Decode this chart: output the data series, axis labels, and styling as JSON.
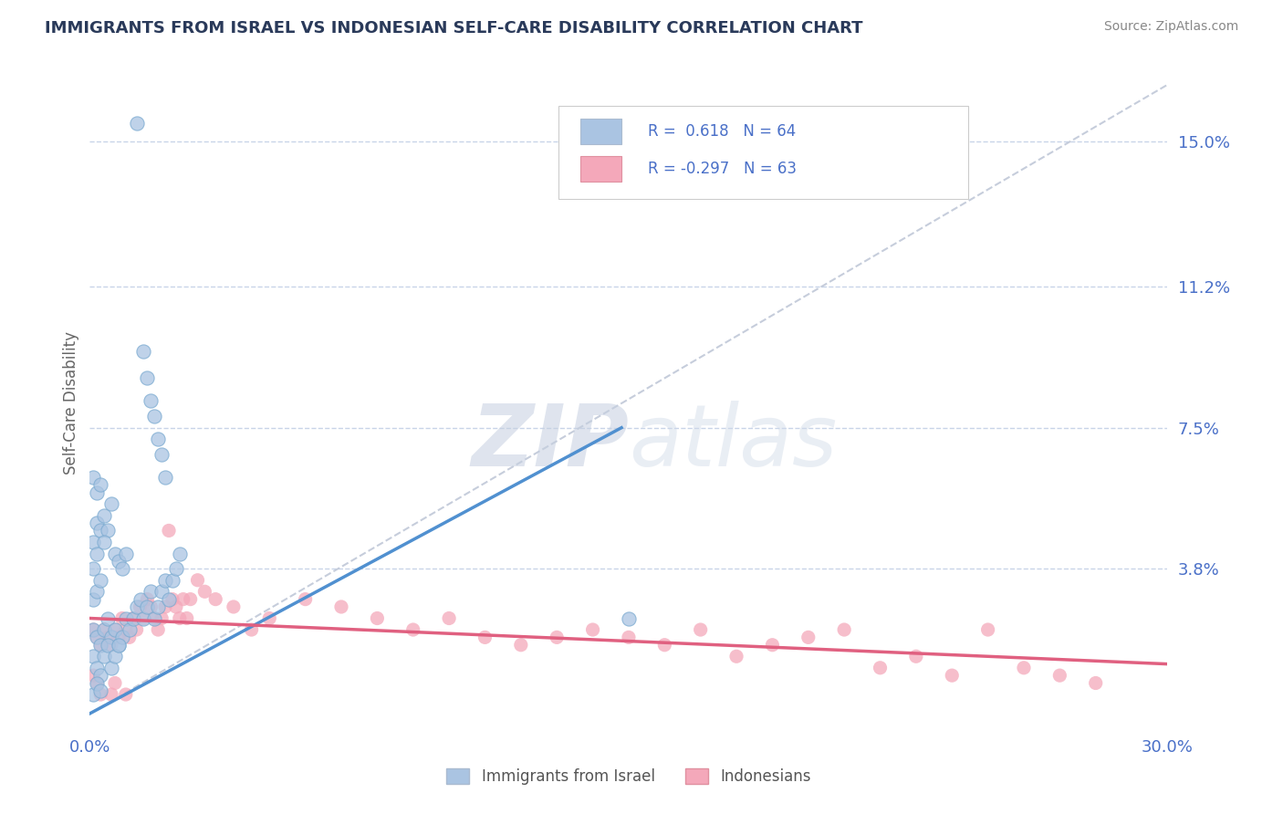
{
  "title": "IMMIGRANTS FROM ISRAEL VS INDONESIAN SELF-CARE DISABILITY CORRELATION CHART",
  "source": "Source: ZipAtlas.com",
  "ylabel": "Self-Care Disability",
  "xlim": [
    0.0,
    0.3
  ],
  "ylim": [
    -0.005,
    0.168
  ],
  "ytick_labels": [
    "3.8%",
    "7.5%",
    "11.2%",
    "15.0%"
  ],
  "ytick_vals": [
    0.038,
    0.075,
    0.112,
    0.15
  ],
  "blue_R": 0.618,
  "blue_N": 64,
  "pink_R": -0.297,
  "pink_N": 63,
  "blue_color": "#aac4e2",
  "pink_color": "#f4a8ba",
  "blue_line_color": "#5090d0",
  "pink_line_color": "#e06080",
  "ref_line_color": "#c0c8d8",
  "watermark_zip": "ZIP",
  "watermark_atlas": "atlas",
  "legend_label_blue": "Immigrants from Israel",
  "legend_label_pink": "Indonesians",
  "background_color": "#ffffff",
  "grid_color": "#c8d4e8",
  "title_color": "#2a3a5a",
  "axis_label_color": "#4a70c8",
  "blue_scatter": [
    [
      0.001,
      0.022
    ],
    [
      0.002,
      0.02
    ],
    [
      0.003,
      0.018
    ],
    [
      0.004,
      0.022
    ],
    [
      0.005,
      0.025
    ],
    [
      0.006,
      0.02
    ],
    [
      0.007,
      0.022
    ],
    [
      0.008,
      0.018
    ],
    [
      0.009,
      0.02
    ],
    [
      0.01,
      0.025
    ],
    [
      0.011,
      0.022
    ],
    [
      0.012,
      0.025
    ],
    [
      0.013,
      0.028
    ],
    [
      0.014,
      0.03
    ],
    [
      0.015,
      0.025
    ],
    [
      0.016,
      0.028
    ],
    [
      0.017,
      0.032
    ],
    [
      0.018,
      0.025
    ],
    [
      0.019,
      0.028
    ],
    [
      0.02,
      0.032
    ],
    [
      0.021,
      0.035
    ],
    [
      0.022,
      0.03
    ],
    [
      0.023,
      0.035
    ],
    [
      0.024,
      0.038
    ],
    [
      0.025,
      0.042
    ],
    [
      0.001,
      0.045
    ],
    [
      0.002,
      0.05
    ],
    [
      0.003,
      0.048
    ],
    [
      0.004,
      0.052
    ],
    [
      0.001,
      0.038
    ],
    [
      0.002,
      0.042
    ],
    [
      0.001,
      0.03
    ],
    [
      0.002,
      0.032
    ],
    [
      0.003,
      0.035
    ],
    [
      0.001,
      0.015
    ],
    [
      0.002,
      0.012
    ],
    [
      0.003,
      0.01
    ],
    [
      0.004,
      0.015
    ],
    [
      0.005,
      0.018
    ],
    [
      0.006,
      0.012
    ],
    [
      0.007,
      0.015
    ],
    [
      0.008,
      0.018
    ],
    [
      0.001,
      0.005
    ],
    [
      0.002,
      0.008
    ],
    [
      0.003,
      0.006
    ],
    [
      0.001,
      0.062
    ],
    [
      0.002,
      0.058
    ],
    [
      0.003,
      0.06
    ],
    [
      0.006,
      0.055
    ],
    [
      0.005,
      0.048
    ],
    [
      0.004,
      0.045
    ],
    [
      0.007,
      0.042
    ],
    [
      0.008,
      0.04
    ],
    [
      0.009,
      0.038
    ],
    [
      0.01,
      0.042
    ],
    [
      0.013,
      0.155
    ],
    [
      0.015,
      0.095
    ],
    [
      0.016,
      0.088
    ],
    [
      0.017,
      0.082
    ],
    [
      0.018,
      0.078
    ],
    [
      0.019,
      0.072
    ],
    [
      0.02,
      0.068
    ],
    [
      0.021,
      0.062
    ],
    [
      0.15,
      0.025
    ]
  ],
  "pink_scatter": [
    [
      0.001,
      0.022
    ],
    [
      0.002,
      0.02
    ],
    [
      0.003,
      0.018
    ],
    [
      0.004,
      0.022
    ],
    [
      0.005,
      0.02
    ],
    [
      0.006,
      0.018
    ],
    [
      0.007,
      0.022
    ],
    [
      0.008,
      0.02
    ],
    [
      0.009,
      0.025
    ],
    [
      0.01,
      0.022
    ],
    [
      0.011,
      0.02
    ],
    [
      0.012,
      0.025
    ],
    [
      0.013,
      0.022
    ],
    [
      0.014,
      0.028
    ],
    [
      0.015,
      0.025
    ],
    [
      0.016,
      0.03
    ],
    [
      0.017,
      0.028
    ],
    [
      0.018,
      0.025
    ],
    [
      0.019,
      0.022
    ],
    [
      0.02,
      0.025
    ],
    [
      0.021,
      0.028
    ],
    [
      0.022,
      0.048
    ],
    [
      0.023,
      0.03
    ],
    [
      0.024,
      0.028
    ],
    [
      0.025,
      0.025
    ],
    [
      0.026,
      0.03
    ],
    [
      0.027,
      0.025
    ],
    [
      0.028,
      0.03
    ],
    [
      0.03,
      0.035
    ],
    [
      0.032,
      0.032
    ],
    [
      0.035,
      0.03
    ],
    [
      0.04,
      0.028
    ],
    [
      0.045,
      0.022
    ],
    [
      0.05,
      0.025
    ],
    [
      0.06,
      0.03
    ],
    [
      0.07,
      0.028
    ],
    [
      0.08,
      0.025
    ],
    [
      0.09,
      0.022
    ],
    [
      0.1,
      0.025
    ],
    [
      0.11,
      0.02
    ],
    [
      0.12,
      0.018
    ],
    [
      0.13,
      0.02
    ],
    [
      0.14,
      0.022
    ],
    [
      0.15,
      0.02
    ],
    [
      0.16,
      0.018
    ],
    [
      0.17,
      0.022
    ],
    [
      0.18,
      0.015
    ],
    [
      0.19,
      0.018
    ],
    [
      0.2,
      0.02
    ],
    [
      0.21,
      0.022
    ],
    [
      0.22,
      0.012
    ],
    [
      0.23,
      0.015
    ],
    [
      0.24,
      0.01
    ],
    [
      0.25,
      0.022
    ],
    [
      0.26,
      0.012
    ],
    [
      0.27,
      0.01
    ],
    [
      0.28,
      0.008
    ],
    [
      0.006,
      0.005
    ],
    [
      0.007,
      0.008
    ],
    [
      0.001,
      0.01
    ],
    [
      0.002,
      0.008
    ],
    [
      0.003,
      0.005
    ],
    [
      0.01,
      0.005
    ]
  ],
  "blue_line_x": [
    0.0,
    0.148
  ],
  "blue_line_y": [
    0.0,
    0.075
  ],
  "pink_line_x": [
    0.0,
    0.3
  ],
  "pink_line_y": [
    0.025,
    0.013
  ]
}
